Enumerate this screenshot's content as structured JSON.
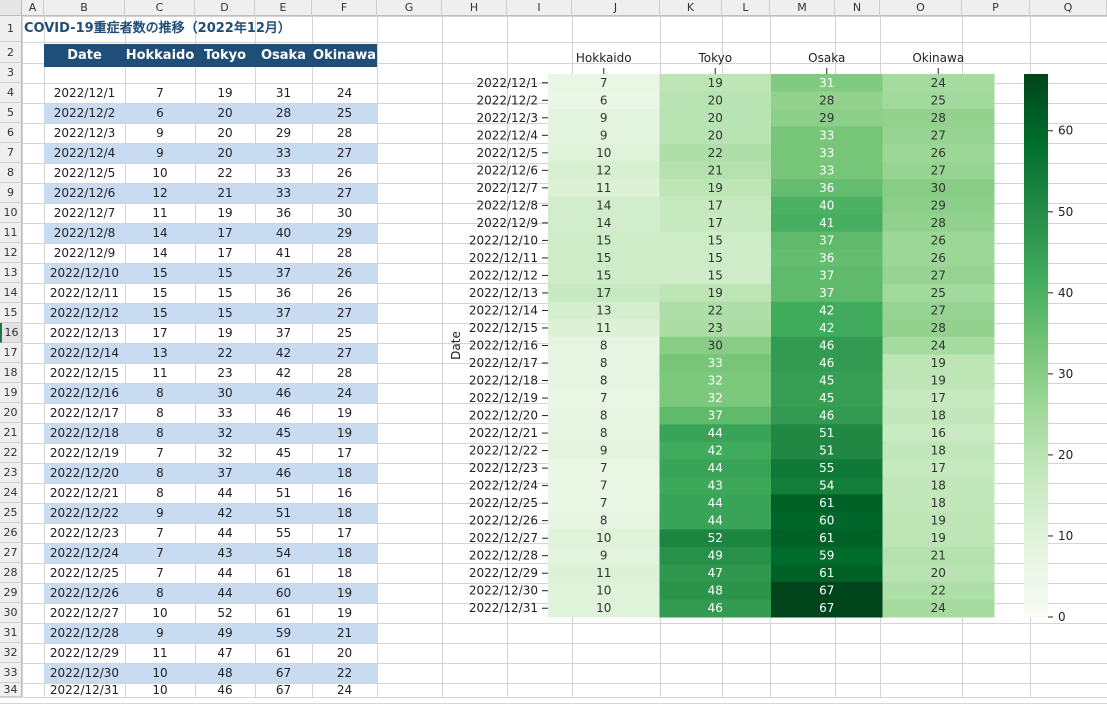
{
  "spreadsheet": {
    "columns": [
      "A",
      "B",
      "C",
      "D",
      "E",
      "F",
      "G",
      "H",
      "I",
      "J",
      "K",
      "L",
      "M",
      "N",
      "O",
      "P",
      "Q"
    ],
    "rows": [
      "1",
      "2",
      "3",
      "4",
      "5",
      "6",
      "7",
      "8",
      "9",
      "10",
      "11",
      "12",
      "13",
      "14",
      "15",
      "16",
      "17",
      "18",
      "19",
      "20",
      "21",
      "22",
      "23",
      "24",
      "25",
      "26",
      "27",
      "28",
      "29",
      "30",
      "31",
      "32",
      "33",
      "34"
    ],
    "title": "COVID-19重症者数の推移（2022年12月）",
    "table_headers": [
      "Date",
      "Hokkaido",
      "Tokyo",
      "Osaka",
      "Okinawa"
    ]
  },
  "chart_data": {
    "type": "heatmap",
    "ylabel": "Date",
    "xlabel": "",
    "categories": [
      "Hokkaido",
      "Tokyo",
      "Osaka",
      "Okinawa"
    ],
    "rows": [
      "2022/12/1",
      "2022/12/2",
      "2022/12/3",
      "2022/12/4",
      "2022/12/5",
      "2022/12/6",
      "2022/12/7",
      "2022/12/8",
      "2022/12/9",
      "2022/12/10",
      "2022/12/11",
      "2022/12/12",
      "2022/12/13",
      "2022/12/14",
      "2022/12/15",
      "2022/12/16",
      "2022/12/17",
      "2022/12/18",
      "2022/12/19",
      "2022/12/20",
      "2022/12/21",
      "2022/12/22",
      "2022/12/23",
      "2022/12/24",
      "2022/12/25",
      "2022/12/26",
      "2022/12/27",
      "2022/12/28",
      "2022/12/29",
      "2022/12/30",
      "2022/12/31"
    ],
    "values": [
      [
        7,
        19,
        31,
        24
      ],
      [
        6,
        20,
        28,
        25
      ],
      [
        9,
        20,
        29,
        28
      ],
      [
        9,
        20,
        33,
        27
      ],
      [
        10,
        22,
        33,
        26
      ],
      [
        12,
        21,
        33,
        27
      ],
      [
        11,
        19,
        36,
        30
      ],
      [
        14,
        17,
        40,
        29
      ],
      [
        14,
        17,
        41,
        28
      ],
      [
        15,
        15,
        37,
        26
      ],
      [
        15,
        15,
        36,
        26
      ],
      [
        15,
        15,
        37,
        27
      ],
      [
        17,
        19,
        37,
        25
      ],
      [
        13,
        22,
        42,
        27
      ],
      [
        11,
        23,
        42,
        28
      ],
      [
        8,
        30,
        46,
        24
      ],
      [
        8,
        33,
        46,
        19
      ],
      [
        8,
        32,
        45,
        19
      ],
      [
        7,
        32,
        45,
        17
      ],
      [
        8,
        37,
        46,
        18
      ],
      [
        8,
        44,
        51,
        16
      ],
      [
        9,
        42,
        51,
        18
      ],
      [
        7,
        44,
        55,
        17
      ],
      [
        7,
        43,
        54,
        18
      ],
      [
        7,
        44,
        61,
        18
      ],
      [
        8,
        44,
        60,
        19
      ],
      [
        10,
        52,
        61,
        19
      ],
      [
        9,
        49,
        59,
        21
      ],
      [
        11,
        47,
        61,
        20
      ],
      [
        10,
        48,
        67,
        22
      ],
      [
        10,
        46,
        67,
        24
      ]
    ],
    "colormap": "Greens",
    "colorbar_range": [
      0,
      67
    ],
    "colorbar_ticks": [
      0,
      10,
      20,
      30,
      40,
      50,
      60
    ],
    "colors": {
      "low": "#f7fcf5",
      "high": "#00441b"
    }
  }
}
